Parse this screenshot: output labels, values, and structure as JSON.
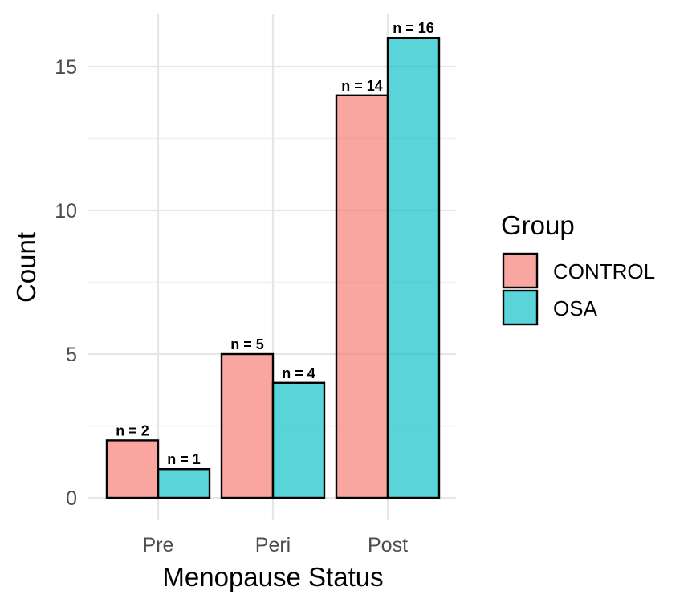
{
  "chart_data": {
    "type": "bar",
    "xlabel": "Menopause Status",
    "ylabel": "Count",
    "categories": [
      "Pre",
      "Peri",
      "Post"
    ],
    "series": [
      {
        "name": "CONTROL",
        "values": [
          2,
          5,
          14
        ],
        "color": "#F8766D",
        "labels": [
          "n = 2",
          "n = 5",
          "n = 14"
        ]
      },
      {
        "name": "OSA",
        "values": [
          1,
          4,
          16
        ],
        "color": "#00BFC4",
        "labels": [
          "n = 1",
          "n = 4",
          "n = 16"
        ]
      }
    ],
    "ylim": [
      0,
      16.8
    ],
    "yticks": [
      0,
      5,
      10,
      15
    ],
    "ytick_labels": [
      "0",
      "5",
      "10",
      "15"
    ],
    "grid": true,
    "legend": {
      "title": "Group",
      "position": "right"
    }
  }
}
